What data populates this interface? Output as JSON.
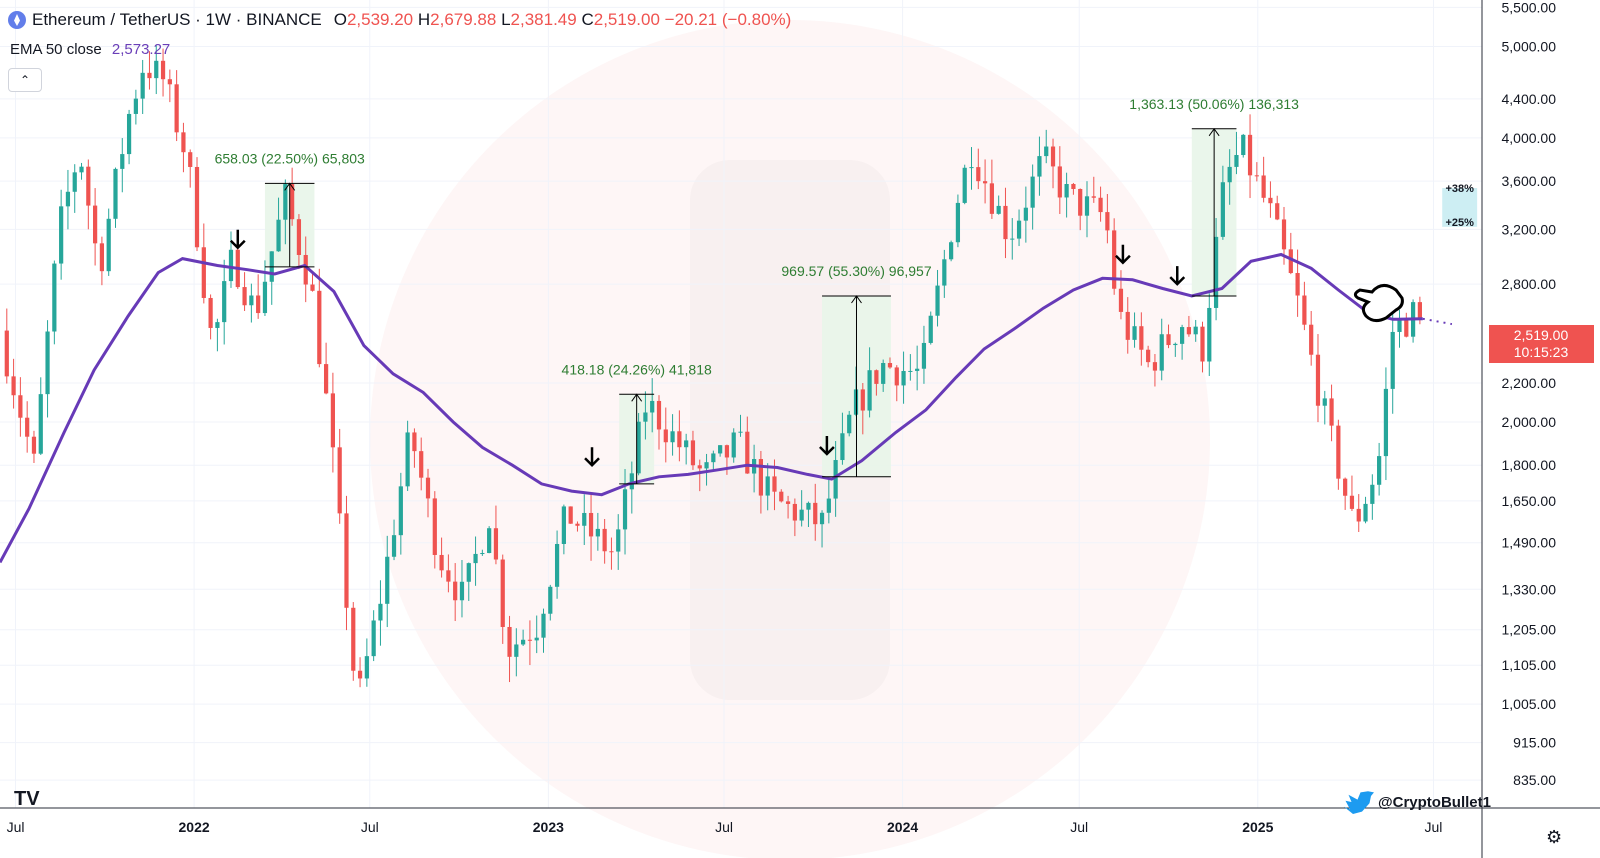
{
  "header": {
    "symbol": "Ethereum / TetherUS · 1W · BINANCE",
    "o_label": "O",
    "o_value": "2,539.20",
    "h_label": "H",
    "h_value": "2,679.88",
    "l_label": "L",
    "l_value": "2,381.49",
    "c_label": "C",
    "c_value": "2,519.00",
    "change": "−20.21 (−0.80%)"
  },
  "indicator": {
    "label": "EMA 50 close",
    "value": "2,573.27"
  },
  "collapse_symbol": "⌃",
  "tv_logo": "TV",
  "watermark_handle": "@CryptoBullet1",
  "price_tag": {
    "price": "2,519.00",
    "countdown": "10:15:23"
  },
  "colors": {
    "up": "#26a69a",
    "down": "#ef5350",
    "ema": "#673ab7",
    "measure_bg": "#e8f5e9",
    "measure_text": "#2e7d32",
    "target_box": "#cdeef3",
    "price_tag": "#ef5350"
  },
  "chart_data": {
    "type": "candlestick",
    "scale": "log",
    "ylim": [
      780,
      5600
    ],
    "xlim": [
      "2021-06-15",
      "2025-08-20"
    ],
    "y_ticks": [
      5500,
      5000,
      4400,
      4000,
      3600,
      3200,
      2800,
      2200,
      2000,
      1800,
      1650,
      1490,
      1330,
      1205,
      1105,
      1005,
      915,
      835
    ],
    "y_tick_labels": [
      "5,500.00",
      "5,000.00",
      "4,400.00",
      "4,000.00",
      "3,600.00",
      "3,200.00",
      "2,800.00",
      "2,200.00",
      "2,000.00",
      "1,800.00",
      "1,650.00",
      "1,490.00",
      "1,330.00",
      "1,205.00",
      "1,105.00",
      "1,005.00",
      "915.00",
      "835.00"
    ],
    "x_ticks": [
      {
        "label": "Jul",
        "date": "2021-07-01"
      },
      {
        "label": "2022",
        "date": "2022-01-01"
      },
      {
        "label": "Jul",
        "date": "2022-07-01"
      },
      {
        "label": "2023",
        "date": "2023-01-01"
      },
      {
        "label": "Jul",
        "date": "2023-07-01"
      },
      {
        "label": "2024",
        "date": "2024-01-01"
      },
      {
        "label": "Jul",
        "date": "2024-07-01"
      },
      {
        "label": "2025",
        "date": "2025-01-01"
      },
      {
        "label": "Jul",
        "date": "2025-07-01"
      }
    ],
    "price_path": [
      [
        "2021-06-15",
        2500
      ],
      [
        "2021-07-20",
        1800
      ],
      [
        "2021-08-15",
        3200
      ],
      [
        "2021-09-05",
        3900
      ],
      [
        "2021-09-25",
        2900
      ],
      [
        "2021-10-25",
        4200
      ],
      [
        "2021-11-10",
        4800
      ],
      [
        "2021-12-01",
        4600
      ],
      [
        "2021-12-25",
        3800
      ],
      [
        "2022-01-20",
        2400
      ],
      [
        "2022-02-10",
        3000
      ],
      [
        "2022-03-05",
        2600
      ],
      [
        "2022-04-05",
        3450
      ],
      [
        "2022-05-01",
        2800
      ],
      [
        "2022-05-20",
        2000
      ],
      [
        "2022-06-18",
        1000
      ],
      [
        "2022-07-15",
        1350
      ],
      [
        "2022-08-12",
        1950
      ],
      [
        "2022-09-10",
        1450
      ],
      [
        "2022-10-05",
        1300
      ],
      [
        "2022-11-01",
        1600
      ],
      [
        "2022-11-20",
        1150
      ],
      [
        "2022-12-20",
        1220
      ],
      [
        "2023-01-20",
        1600
      ],
      [
        "2023-03-10",
        1450
      ],
      [
        "2023-04-12",
        2100
      ],
      [
        "2023-06-10",
        1750
      ],
      [
        "2023-07-15",
        1900
      ],
      [
        "2023-08-20",
        1650
      ],
      [
        "2023-10-10",
        1560
      ],
      [
        "2023-11-10",
        2050
      ],
      [
        "2023-12-10",
        2300
      ],
      [
        "2024-01-20",
        2250
      ],
      [
        "2024-02-25",
        3400
      ],
      [
        "2024-03-12",
        3900
      ],
      [
        "2024-04-20",
        3150
      ],
      [
        "2024-05-25",
        3800
      ],
      [
        "2024-06-20",
        3450
      ],
      [
        "2024-07-28",
        3300
      ],
      [
        "2024-08-10",
        2600
      ],
      [
        "2024-09-10",
        2300
      ],
      [
        "2024-10-15",
        2550
      ],
      [
        "2024-11-05",
        2400
      ],
      [
        "2024-11-28",
        3600
      ],
      [
        "2024-12-15",
        3900
      ],
      [
        "2025-01-15",
        3300
      ],
      [
        "2025-02-10",
        2700
      ],
      [
        "2025-03-10",
        2050
      ],
      [
        "2025-04-10",
        1550
      ],
      [
        "2025-05-05",
        1800
      ],
      [
        "2025-05-20",
        2500
      ],
      [
        "2025-06-10",
        2600
      ],
      [
        "2025-06-20",
        2519
      ]
    ],
    "ema50": [
      [
        "2021-06-15",
        1420
      ],
      [
        "2021-07-15",
        1620
      ],
      [
        "2021-08-20",
        1950
      ],
      [
        "2021-09-20",
        2270
      ],
      [
        "2021-10-25",
        2590
      ],
      [
        "2021-11-25",
        2880
      ],
      [
        "2021-12-20",
        2980
      ],
      [
        "2022-01-25",
        2930
      ],
      [
        "2022-02-25",
        2900
      ],
      [
        "2022-03-25",
        2870
      ],
      [
        "2022-04-25",
        2930
      ],
      [
        "2022-05-25",
        2750
      ],
      [
        "2022-06-25",
        2410
      ],
      [
        "2022-07-25",
        2250
      ],
      [
        "2022-08-25",
        2150
      ],
      [
        "2022-09-25",
        2000
      ],
      [
        "2022-10-25",
        1880
      ],
      [
        "2022-11-25",
        1800
      ],
      [
        "2022-12-25",
        1720
      ],
      [
        "2023-01-25",
        1690
      ],
      [
        "2023-02-25",
        1675
      ],
      [
        "2023-03-25",
        1720
      ],
      [
        "2023-04-25",
        1750
      ],
      [
        "2023-05-25",
        1760
      ],
      [
        "2023-06-25",
        1780
      ],
      [
        "2023-07-25",
        1800
      ],
      [
        "2023-08-25",
        1790
      ],
      [
        "2023-09-25",
        1760
      ],
      [
        "2023-10-20",
        1740
      ],
      [
        "2023-11-20",
        1820
      ],
      [
        "2023-12-25",
        1950
      ],
      [
        "2024-01-25",
        2060
      ],
      [
        "2024-02-25",
        2230
      ],
      [
        "2024-03-25",
        2390
      ],
      [
        "2024-04-25",
        2510
      ],
      [
        "2024-05-25",
        2640
      ],
      [
        "2024-06-25",
        2760
      ],
      [
        "2024-07-25",
        2840
      ],
      [
        "2024-08-25",
        2830
      ],
      [
        "2024-09-25",
        2770
      ],
      [
        "2024-10-25",
        2720
      ],
      [
        "2024-11-25",
        2770
      ],
      [
        "2024-12-25",
        2960
      ],
      [
        "2025-01-25",
        3010
      ],
      [
        "2025-02-25",
        2910
      ],
      [
        "2025-03-25",
        2760
      ],
      [
        "2025-04-25",
        2610
      ],
      [
        "2025-05-20",
        2570
      ],
      [
        "2025-06-20",
        2573
      ]
    ],
    "ema_extension": [
      [
        "2025-06-20",
        2573
      ],
      [
        "2025-07-20",
        2540
      ]
    ],
    "measures": [
      {
        "label": "658.03 (22.50%) 65,803",
        "start": "2022-03-15",
        "end": "2022-05-05",
        "low": 2920,
        "high": 3580
      },
      {
        "label": "418.18 (24.26%) 41,818",
        "start": "2023-03-15",
        "end": "2023-04-20",
        "low": 1720,
        "high": 2140
      },
      {
        "label": "969.57 (55.30%) 96,957",
        "start": "2023-10-10",
        "end": "2023-12-20",
        "low": 1750,
        "high": 2720
      },
      {
        "label": "1,363.13 (50.06%) 136,313",
        "start": "2024-10-25",
        "end": "2024-12-10",
        "low": 2720,
        "high": 4090
      }
    ],
    "arrows": [
      {
        "date": "2022-02-15",
        "price": 3060
      },
      {
        "date": "2023-02-15",
        "price": 1800
      },
      {
        "date": "2023-10-15",
        "price": 1850
      },
      {
        "date": "2024-08-15",
        "price": 2950
      },
      {
        "date": "2024-10-10",
        "price": 2800
      }
    ],
    "targets": [
      {
        "label": "+38%",
        "price": 3540
      },
      {
        "label": "+25%",
        "price": 3220
      }
    ],
    "target_box": {
      "start": "2025-07-10",
      "end": "2025-08-15",
      "low": 3220,
      "high": 3540
    }
  }
}
